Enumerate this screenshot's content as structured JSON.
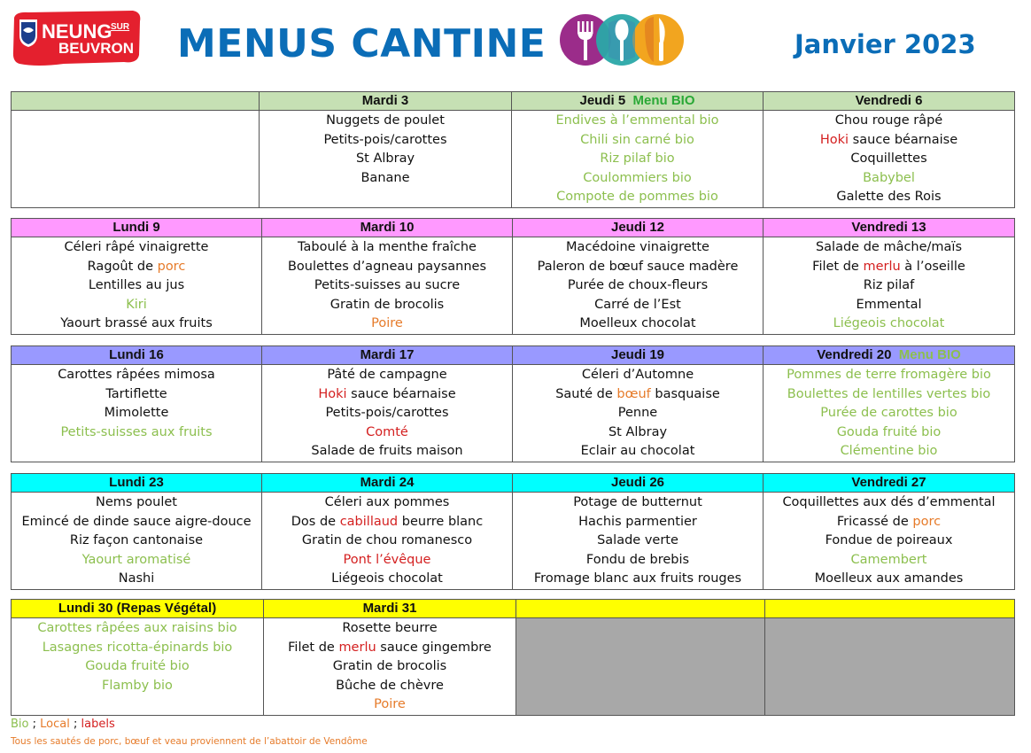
{
  "header": {
    "logo_line1": "NEUNG",
    "logo_sur": "SUR",
    "logo_line2": "BEUVRON",
    "title": "MENUS CANTINE",
    "month": "Janvier 2023"
  },
  "colors": {
    "title_blue": "#0b6db7",
    "bio_green": "#8cbf4e",
    "local_orange": "#e67b2a",
    "label_red": "#d42020",
    "week1_header": "#c6e0b4",
    "week2_header": "#ff99ff",
    "week3_header": "#9999ff",
    "week4_header": "#00ffff",
    "week5_header": "#ffff00",
    "empty_cell": "#a8a8a8"
  },
  "weeks": [
    {
      "header_color": "#c6e0b4",
      "days": [
        {
          "label": "",
          "note": "",
          "items": []
        },
        {
          "label": "Mardi 3",
          "note": "",
          "items": [
            {
              "segs": [
                {
                  "t": "Nuggets de poulet",
                  "c": ""
                }
              ]
            },
            {
              "segs": [
                {
                  "t": "Petits-pois/carottes",
                  "c": ""
                }
              ]
            },
            {
              "segs": [
                {
                  "t": "St Albray",
                  "c": ""
                }
              ]
            },
            {
              "segs": [
                {
                  "t": "Banane",
                  "c": ""
                }
              ]
            }
          ]
        },
        {
          "label": "Jeudi 5",
          "note": "Menu BIO",
          "note_class": "bio",
          "items": [
            {
              "segs": [
                {
                  "t": "Endives à l’emmental bio",
                  "c": "g"
                }
              ]
            },
            {
              "segs": [
                {
                  "t": "Chili sin carné bio",
                  "c": "g"
                }
              ]
            },
            {
              "segs": [
                {
                  "t": "Riz pilaf bio",
                  "c": "g"
                }
              ]
            },
            {
              "segs": [
                {
                  "t": "Coulommiers bio",
                  "c": "g"
                }
              ]
            },
            {
              "segs": [
                {
                  "t": "Compote de pommes bio",
                  "c": "g"
                }
              ]
            }
          ]
        },
        {
          "label": "Vendredi 6",
          "note": "",
          "items": [
            {
              "segs": [
                {
                  "t": "Chou rouge râpé",
                  "c": ""
                }
              ]
            },
            {
              "segs": [
                {
                  "t": "Hoki",
                  "c": "r"
                },
                {
                  "t": " sauce béarnaise",
                  "c": ""
                }
              ]
            },
            {
              "segs": [
                {
                  "t": "Coquillettes",
                  "c": ""
                }
              ]
            },
            {
              "segs": [
                {
                  "t": "Babybel",
                  "c": "g"
                }
              ]
            },
            {
              "segs": [
                {
                  "t": "Galette des Rois",
                  "c": ""
                }
              ]
            }
          ]
        }
      ]
    },
    {
      "header_color": "#ff99ff",
      "days": [
        {
          "label": "Lundi 9",
          "note": "",
          "items": [
            {
              "segs": [
                {
                  "t": "Céleri râpé vinaigrette",
                  "c": ""
                }
              ]
            },
            {
              "segs": [
                {
                  "t": "Ragoût de ",
                  "c": ""
                },
                {
                  "t": "porc",
                  "c": "o"
                }
              ]
            },
            {
              "segs": [
                {
                  "t": "Lentilles au jus",
                  "c": ""
                }
              ]
            },
            {
              "segs": [
                {
                  "t": "Kiri",
                  "c": "g"
                }
              ]
            },
            {
              "segs": [
                {
                  "t": "Yaourt brassé aux fruits",
                  "c": ""
                }
              ]
            }
          ]
        },
        {
          "label": "Mardi 10",
          "note": "",
          "items": [
            {
              "segs": [
                {
                  "t": "Taboulé à la menthe fraîche",
                  "c": ""
                }
              ]
            },
            {
              "segs": [
                {
                  "t": "Boulettes d’agneau paysannes",
                  "c": ""
                }
              ]
            },
            {
              "segs": [
                {
                  "t": "Petits-suisses au sucre",
                  "c": ""
                }
              ]
            },
            {
              "segs": [
                {
                  "t": "Gratin de brocolis",
                  "c": ""
                }
              ]
            },
            {
              "segs": [
                {
                  "t": "Poire",
                  "c": "o"
                }
              ]
            }
          ]
        },
        {
          "label": "Jeudi 12",
          "note": "",
          "items": [
            {
              "segs": [
                {
                  "t": "Macédoine vinaigrette",
                  "c": ""
                }
              ]
            },
            {
              "segs": [
                {
                  "t": "Paleron de bœuf sauce madère",
                  "c": ""
                }
              ]
            },
            {
              "segs": [
                {
                  "t": "Purée de choux-fleurs",
                  "c": ""
                }
              ]
            },
            {
              "segs": [
                {
                  "t": "Carré de l’Est",
                  "c": ""
                }
              ]
            },
            {
              "segs": [
                {
                  "t": "Moelleux chocolat",
                  "c": ""
                }
              ]
            }
          ]
        },
        {
          "label": "Vendredi 13",
          "note": "",
          "items": [
            {
              "segs": [
                {
                  "t": "Salade de mâche/maïs",
                  "c": ""
                }
              ]
            },
            {
              "segs": [
                {
                  "t": "Filet de ",
                  "c": ""
                },
                {
                  "t": "merlu",
                  "c": "r"
                },
                {
                  "t": " à l’oseille",
                  "c": ""
                }
              ]
            },
            {
              "segs": [
                {
                  "t": "Riz pilaf",
                  "c": ""
                }
              ]
            },
            {
              "segs": [
                {
                  "t": "Emmental",
                  "c": ""
                }
              ]
            },
            {
              "segs": [
                {
                  "t": "Liégeois chocolat",
                  "c": "g"
                }
              ]
            }
          ]
        }
      ]
    },
    {
      "header_color": "#9999ff",
      "days": [
        {
          "label": "Lundi 16",
          "note": "",
          "items": [
            {
              "segs": [
                {
                  "t": "Carottes râpées mimosa",
                  "c": ""
                }
              ]
            },
            {
              "segs": [
                {
                  "t": "Tartiflette",
                  "c": ""
                }
              ]
            },
            {
              "segs": [
                {
                  "t": "Mimolette",
                  "c": ""
                }
              ]
            },
            {
              "segs": [
                {
                  "t": "Petits-suisses aux fruits",
                  "c": "g"
                }
              ]
            }
          ]
        },
        {
          "label": "Mardi 17",
          "note": "",
          "items": [
            {
              "segs": [
                {
                  "t": "Pâté de campagne",
                  "c": ""
                }
              ]
            },
            {
              "segs": [
                {
                  "t": "Hoki",
                  "c": "r"
                },
                {
                  "t": " sauce béarnaise",
                  "c": ""
                }
              ]
            },
            {
              "segs": [
                {
                  "t": "Petits-pois/carottes",
                  "c": ""
                }
              ]
            },
            {
              "segs": [
                {
                  "t": "Comté",
                  "c": "r"
                }
              ]
            },
            {
              "segs": [
                {
                  "t": "Salade de fruits maison",
                  "c": ""
                }
              ]
            }
          ]
        },
        {
          "label": "Jeudi 19",
          "note": "",
          "items": [
            {
              "segs": [
                {
                  "t": "Céleri d’Automne",
                  "c": ""
                }
              ]
            },
            {
              "segs": [
                {
                  "t": "Sauté de ",
                  "c": ""
                },
                {
                  "t": "bœuf",
                  "c": "o"
                },
                {
                  "t": " basquaise",
                  "c": ""
                }
              ]
            },
            {
              "segs": [
                {
                  "t": "Penne",
                  "c": ""
                }
              ]
            },
            {
              "segs": [
                {
                  "t": "St Albray",
                  "c": ""
                }
              ]
            },
            {
              "segs": [
                {
                  "t": "Eclair au chocolat",
                  "c": ""
                }
              ]
            }
          ]
        },
        {
          "label": "Vendredi 20",
          "note": "Menu BIO",
          "note_class": "bio2",
          "items": [
            {
              "segs": [
                {
                  "t": "Pommes de terre fromagère bio",
                  "c": "g"
                }
              ]
            },
            {
              "segs": [
                {
                  "t": "Boulettes de lentilles vertes bio",
                  "c": "g"
                }
              ]
            },
            {
              "segs": [
                {
                  "t": "Purée de carottes bio",
                  "c": "g"
                }
              ]
            },
            {
              "segs": [
                {
                  "t": "Gouda fruité bio",
                  "c": "g"
                }
              ]
            },
            {
              "segs": [
                {
                  "t": "Clémentine bio",
                  "c": "g"
                }
              ]
            }
          ]
        }
      ]
    },
    {
      "header_color": "#00ffff",
      "days": [
        {
          "label": "Lundi 23",
          "note": "",
          "items": [
            {
              "segs": [
                {
                  "t": "Nems poulet",
                  "c": ""
                }
              ]
            },
            {
              "segs": [
                {
                  "t": "Emincé de dinde sauce aigre-douce",
                  "c": ""
                }
              ]
            },
            {
              "segs": [
                {
                  "t": "Riz façon cantonaise",
                  "c": ""
                }
              ]
            },
            {
              "segs": [
                {
                  "t": "Yaourt aromatisé",
                  "c": "g"
                }
              ]
            },
            {
              "segs": [
                {
                  "t": "Nashi",
                  "c": ""
                }
              ]
            }
          ]
        },
        {
          "label": "Mardi 24",
          "note": "",
          "items": [
            {
              "segs": [
                {
                  "t": "Céleri aux pommes",
                  "c": ""
                }
              ]
            },
            {
              "segs": [
                {
                  "t": "Dos de ",
                  "c": ""
                },
                {
                  "t": "cabillaud",
                  "c": "r"
                },
                {
                  "t": " beurre blanc",
                  "c": ""
                }
              ]
            },
            {
              "segs": [
                {
                  "t": "Gratin de chou romanesco",
                  "c": ""
                }
              ]
            },
            {
              "segs": [
                {
                  "t": "Pont l’évêque",
                  "c": "r"
                }
              ]
            },
            {
              "segs": [
                {
                  "t": "Liégeois chocolat",
                  "c": ""
                }
              ]
            }
          ]
        },
        {
          "label": "Jeudi 26",
          "note": "",
          "items": [
            {
              "segs": [
                {
                  "t": "Potage de butternut",
                  "c": ""
                }
              ]
            },
            {
              "segs": [
                {
                  "t": "Hachis parmentier",
                  "c": ""
                }
              ]
            },
            {
              "segs": [
                {
                  "t": "Salade verte",
                  "c": ""
                }
              ]
            },
            {
              "segs": [
                {
                  "t": "Fondu de brebis",
                  "c": ""
                }
              ]
            },
            {
              "segs": [
                {
                  "t": "Fromage blanc aux fruits rouges",
                  "c": ""
                }
              ]
            }
          ]
        },
        {
          "label": "Vendredi 27",
          "note": "",
          "items": [
            {
              "segs": [
                {
                  "t": "Coquillettes aux dés d’emmental",
                  "c": ""
                }
              ]
            },
            {
              "segs": [
                {
                  "t": "Fricassé de ",
                  "c": ""
                },
                {
                  "t": "porc",
                  "c": "o"
                }
              ]
            },
            {
              "segs": [
                {
                  "t": "Fondue de poireaux",
                  "c": ""
                }
              ]
            },
            {
              "segs": [
                {
                  "t": "Camembert",
                  "c": "g"
                }
              ]
            },
            {
              "segs": [
                {
                  "t": "Moelleux aux amandes",
                  "c": ""
                }
              ]
            }
          ]
        }
      ]
    },
    {
      "header_color": "#ffff00",
      "days": [
        {
          "label": "Lundi 30  (Repas Végétal)",
          "note": "",
          "items": [
            {
              "segs": [
                {
                  "t": "Carottes râpées aux raisins bio",
                  "c": "g"
                }
              ]
            },
            {
              "segs": [
                {
                  "t": "Lasagnes ricotta-épinards bio",
                  "c": "g"
                }
              ]
            },
            {
              "segs": [
                {
                  "t": "Gouda fruité bio",
                  "c": "g"
                }
              ]
            },
            {
              "segs": [
                {
                  "t": "Flamby bio",
                  "c": "g"
                }
              ]
            }
          ]
        },
        {
          "label": "Mardi 31",
          "note": "",
          "items": [
            {
              "segs": [
                {
                  "t": "Rosette beurre",
                  "c": ""
                }
              ]
            },
            {
              "segs": [
                {
                  "t": "Filet de ",
                  "c": ""
                },
                {
                  "t": "merlu",
                  "c": "r"
                },
                {
                  "t": " sauce gingembre",
                  "c": ""
                }
              ]
            },
            {
              "segs": [
                {
                  "t": "Gratin de brocolis",
                  "c": ""
                }
              ]
            },
            {
              "segs": [
                {
                  "t": "Bûche de chèvre",
                  "c": ""
                }
              ]
            },
            {
              "segs": [
                {
                  "t": "Poire",
                  "c": "o"
                }
              ]
            }
          ]
        },
        {
          "label": "",
          "note": "",
          "empty": true,
          "items": []
        },
        {
          "label": "",
          "note": "",
          "empty": true,
          "items": []
        }
      ]
    }
  ],
  "legend": {
    "bio": "Bio",
    "sep1": " ; ",
    "local": "Local",
    "sep2": " ; ",
    "labels": "labels"
  },
  "footnote": "Tous les sautés de porc, bœuf et veau proviennent de l’abattoir de Vendôme"
}
